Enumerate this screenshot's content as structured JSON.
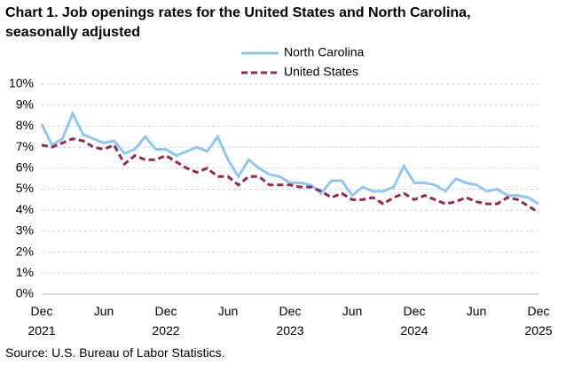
{
  "chart_data": {
    "type": "line",
    "title": "Chart 1. Job openings rates for the United States and North Carolina, seasonally adjusted",
    "source": "Source: U.S. Bureau of Labor Statistics.",
    "categories": [
      "Dec 2021",
      null,
      null,
      null,
      null,
      null,
      "Jun",
      null,
      null,
      null,
      null,
      null,
      "Dec 2022",
      null,
      null,
      null,
      null,
      null,
      "Jun",
      null,
      null,
      null,
      null,
      null,
      "Dec 2023",
      null,
      null,
      null,
      null,
      null,
      "Jun",
      null,
      null,
      null,
      null,
      null,
      "Dec 2024",
      null,
      null,
      null,
      null,
      null,
      "Jun",
      null,
      null,
      null,
      null,
      null,
      "Dec 2025"
    ],
    "series": [
      {
        "name": "North Carolina",
        "color": "#92c5f0",
        "dashed": false,
        "values": [
          8.1,
          7.1,
          7.4,
          8.6,
          7.6,
          7.4,
          7.2,
          7.3,
          6.7,
          6.9,
          7.5,
          6.9,
          6.9,
          6.6,
          6.8,
          7.0,
          6.8,
          7.5,
          6.4,
          5.6,
          6.4,
          6.0,
          5.7,
          5.6,
          5.3,
          5.3,
          5.2,
          4.8,
          5.4,
          5.4,
          4.7,
          5.1,
          4.9,
          4.9,
          5.1,
          6.1,
          5.3,
          5.3,
          5.2,
          4.9,
          5.5,
          5.3,
          5.2,
          4.9,
          5.0,
          4.7,
          4.7,
          4.6,
          4.3
        ]
      },
      {
        "name": "United States",
        "color": "#8b2c55",
        "dashed": true,
        "values": [
          7.1,
          7.0,
          7.2,
          7.4,
          7.3,
          7.0,
          6.9,
          7.1,
          6.2,
          6.6,
          6.4,
          6.4,
          6.6,
          6.3,
          6.0,
          5.8,
          6.0,
          5.6,
          5.6,
          5.2,
          5.6,
          5.6,
          5.2,
          5.2,
          5.2,
          5.1,
          5.1,
          4.9,
          4.6,
          4.8,
          4.5,
          4.5,
          4.6,
          4.3,
          4.6,
          4.8,
          4.5,
          4.7,
          4.5,
          4.3,
          4.4,
          4.6,
          4.4,
          4.3,
          4.3,
          4.6,
          4.5,
          4.2,
          3.9
        ]
      }
    ],
    "ylim": [
      0,
      10
    ],
    "yticks": [
      {
        "value": 0,
        "label": "0%"
      },
      {
        "value": 1,
        "label": "1%"
      },
      {
        "value": 2,
        "label": "2%"
      },
      {
        "value": 3,
        "label": "3%"
      },
      {
        "value": 4,
        "label": "4%"
      },
      {
        "value": 5,
        "label": "5%"
      },
      {
        "value": 6,
        "label": "6%"
      },
      {
        "value": 7,
        "label": "7%"
      },
      {
        "value": 8,
        "label": "8%"
      },
      {
        "value": 9,
        "label": "9%"
      },
      {
        "value": 10,
        "label": "10%"
      }
    ],
    "grid": true,
    "legend": "top"
  }
}
